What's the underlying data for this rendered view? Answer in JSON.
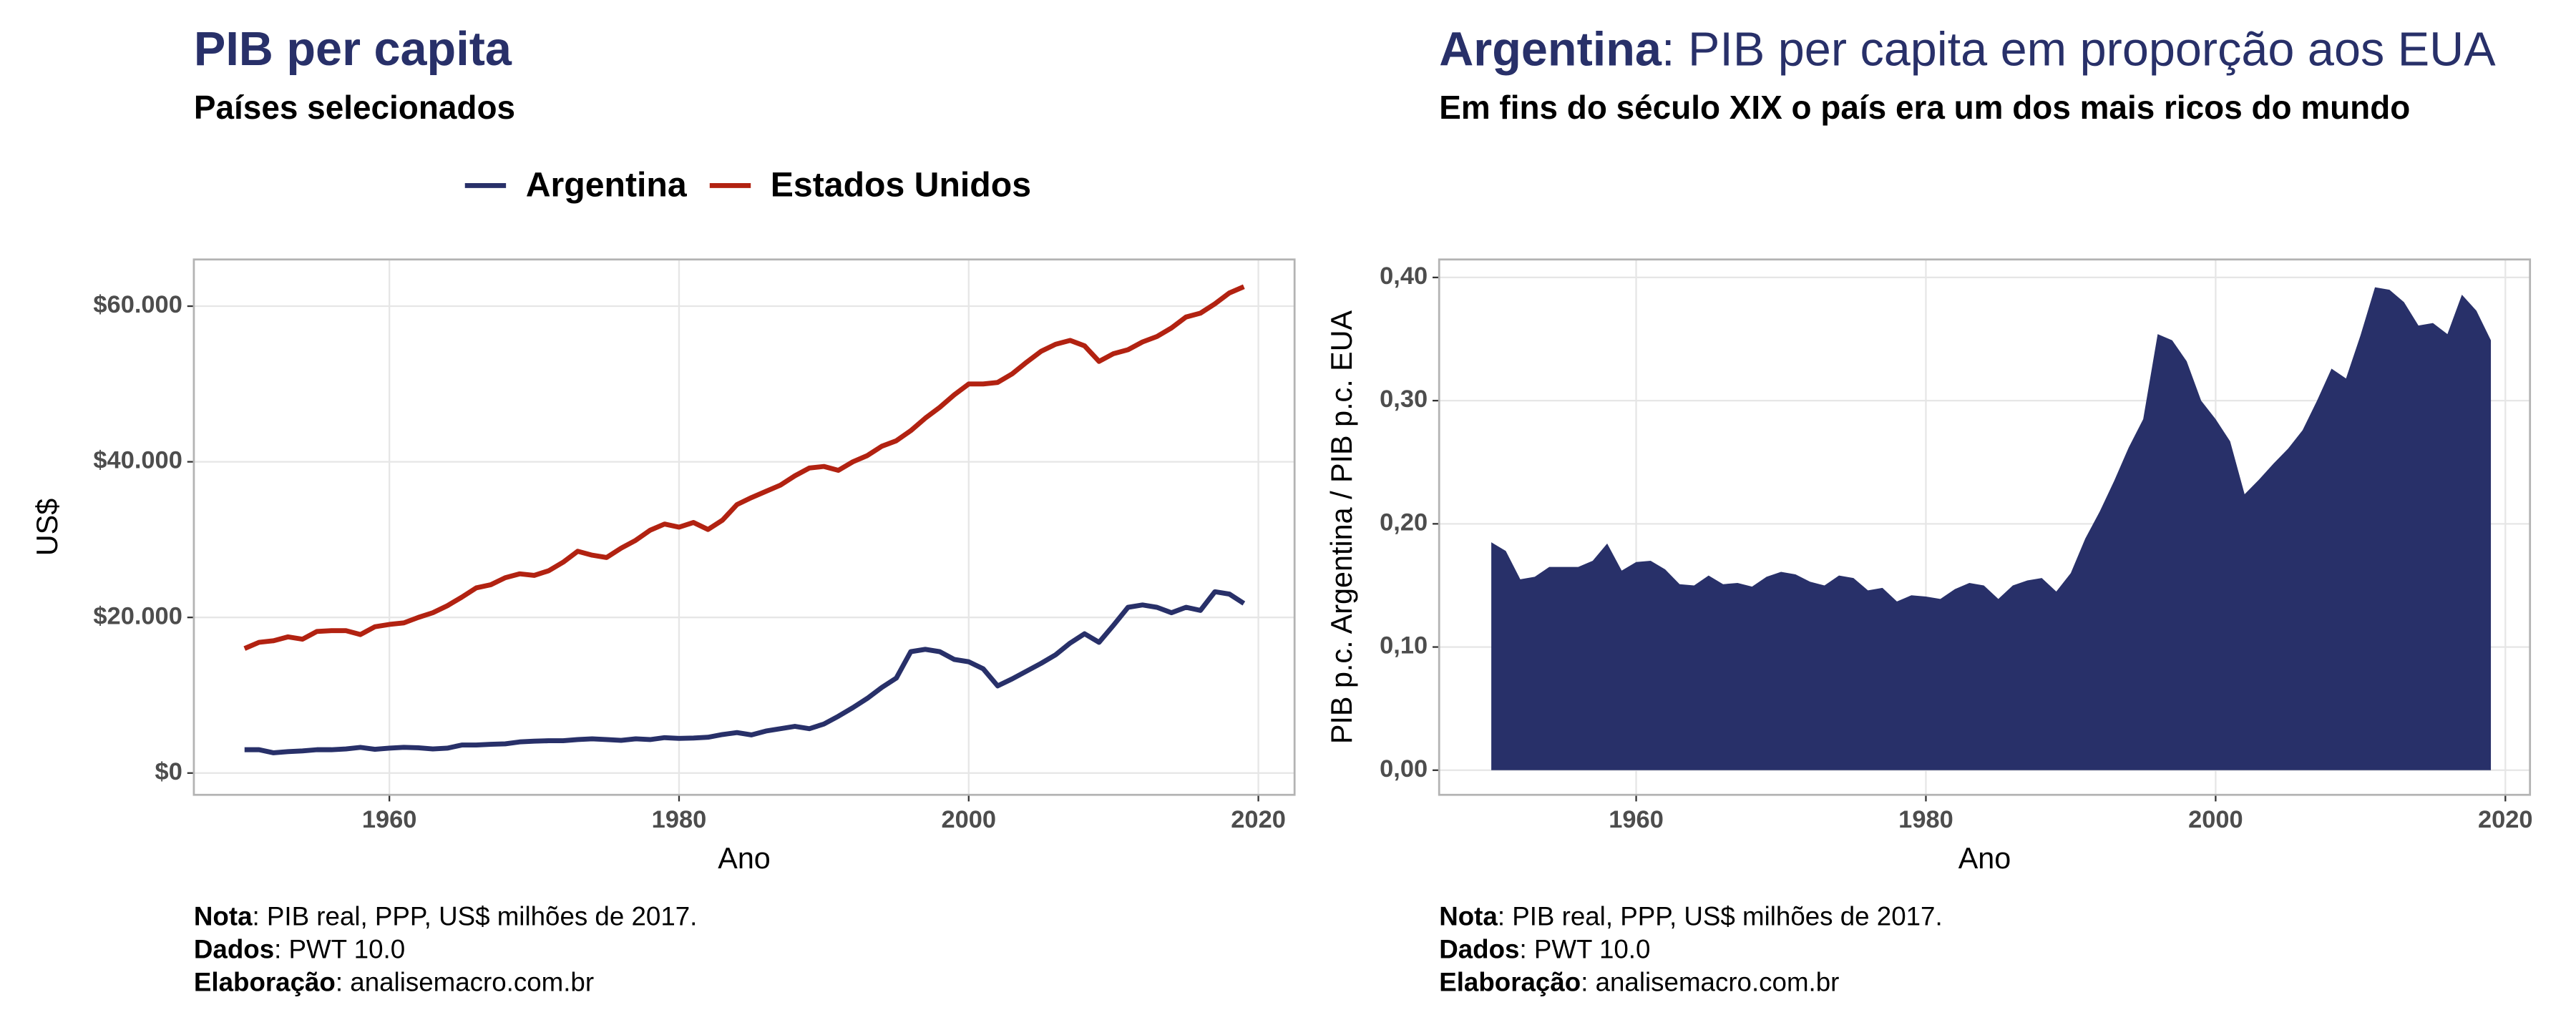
{
  "chart_data": [
    {
      "type": "line",
      "title": "PIB per capita",
      "subtitle": "Países selecionados",
      "xlabel": "Ano",
      "ylabel": "US$",
      "x": [
        1950,
        1951,
        1952,
        1953,
        1954,
        1955,
        1956,
        1957,
        1958,
        1959,
        1960,
        1961,
        1962,
        1963,
        1964,
        1965,
        1966,
        1967,
        1968,
        1969,
        1970,
        1971,
        1972,
        1973,
        1974,
        1975,
        1976,
        1977,
        1978,
        1979,
        1980,
        1981,
        1982,
        1983,
        1984,
        1985,
        1986,
        1987,
        1988,
        1989,
        1990,
        1991,
        1992,
        1993,
        1994,
        1995,
        1996,
        1997,
        1998,
        1999,
        2000,
        2001,
        2002,
        2003,
        2004,
        2005,
        2006,
        2007,
        2008,
        2009,
        2010,
        2011,
        2012,
        2013,
        2014,
        2015,
        2016,
        2017,
        2018,
        2019
      ],
      "series": [
        {
          "name": "Argentina",
          "color": "#283069",
          "values": [
            3000,
            3000,
            2600,
            2750,
            2850,
            3000,
            3000,
            3100,
            3300,
            3050,
            3200,
            3300,
            3250,
            3100,
            3200,
            3600,
            3600,
            3700,
            3750,
            4000,
            4100,
            4150,
            4150,
            4300,
            4400,
            4300,
            4200,
            4400,
            4300,
            4550,
            4450,
            4500,
            4600,
            4950,
            5200,
            4900,
            5400,
            5700,
            6000,
            5700,
            6300,
            7300,
            8400,
            9600,
            11000,
            12200,
            15600,
            15900,
            15600,
            14600,
            14300,
            13400,
            11200,
            12100,
            13100,
            14100,
            15200,
            16700,
            17900,
            16800,
            19000,
            21300,
            21600,
            21300,
            20600,
            21300,
            20900,
            23300,
            23000,
            21800
          ]
        },
        {
          "name": "Estados Unidos",
          "color": "#b22211",
          "values": [
            16000,
            16800,
            17000,
            17500,
            17200,
            18200,
            18300,
            18300,
            17800,
            18800,
            19100,
            19300,
            20000,
            20600,
            21500,
            22600,
            23800,
            24200,
            25100,
            25600,
            25400,
            26000,
            27100,
            28500,
            28000,
            27700,
            28900,
            29900,
            31200,
            32000,
            31600,
            32200,
            31300,
            32500,
            34500,
            35400,
            36200,
            37000,
            38200,
            39200,
            39400,
            38900,
            40000,
            40800,
            42000,
            42700,
            44000,
            45600,
            47000,
            48600,
            50000,
            50000,
            50200,
            51300,
            52800,
            54200,
            55100,
            55600,
            54900,
            52900,
            53900,
            54400,
            55400,
            56100,
            57200,
            58600,
            59100,
            60300,
            61700,
            62500
          ]
        }
      ],
      "xlim": [
        1946.5,
        2022.5
      ],
      "xticks": [
        1960,
        1980,
        2000,
        2020
      ],
      "ylim": [
        -2800,
        66000
      ],
      "yticks": [
        {
          "value": 0,
          "label": "$0"
        },
        {
          "value": 20000,
          "label": "$20.000"
        },
        {
          "value": 40000,
          "label": "$40.000"
        },
        {
          "value": 60000,
          "label": "$60.000"
        }
      ],
      "grid": true,
      "legend": "top",
      "notes": [
        {
          "label": "Nota",
          "text": ": PIB real, PPP, US$ milhões de 2017."
        },
        {
          "label": "Dados",
          "text": ": PWT 10.0"
        },
        {
          "label": "Elaboração",
          "text": ": analisemacro.com.br"
        }
      ]
    },
    {
      "type": "area",
      "title_bold": "Argentina",
      "title": ": PIB per capita em proporção aos EUA",
      "subtitle": "Em fins do século XIX o país era um dos mais ricos do mundo",
      "xlabel": "Ano",
      "ylabel": "PIB p.c. Argentina / PIB p.c. EUA",
      "x": [
        1950,
        1951,
        1952,
        1953,
        1954,
        1955,
        1956,
        1957,
        1958,
        1959,
        1960,
        1961,
        1962,
        1963,
        1964,
        1965,
        1966,
        1967,
        1968,
        1969,
        1970,
        1971,
        1972,
        1973,
        1974,
        1975,
        1976,
        1977,
        1978,
        1979,
        1980,
        1981,
        1982,
        1983,
        1984,
        1985,
        1986,
        1987,
        1988,
        1989,
        1990,
        1991,
        1992,
        1993,
        1994,
        1995,
        1996,
        1997,
        1998,
        1999,
        2000,
        2001,
        2002,
        2003,
        2004,
        2005,
        2006,
        2007,
        2008,
        2009,
        2010,
        2011,
        2012,
        2013,
        2014,
        2015,
        2016,
        2017,
        2018,
        2019
      ],
      "values": [
        0.185,
        0.178,
        0.155,
        0.157,
        0.165,
        0.165,
        0.165,
        0.17,
        0.184,
        0.162,
        0.169,
        0.17,
        0.163,
        0.151,
        0.15,
        0.158,
        0.151,
        0.152,
        0.149,
        0.157,
        0.161,
        0.159,
        0.153,
        0.15,
        0.158,
        0.156,
        0.146,
        0.148,
        0.137,
        0.142,
        0.141,
        0.139,
        0.147,
        0.152,
        0.15,
        0.139,
        0.15,
        0.154,
        0.156,
        0.145,
        0.16,
        0.188,
        0.21,
        0.235,
        0.262,
        0.285,
        0.354,
        0.349,
        0.332,
        0.3,
        0.285,
        0.267,
        0.224,
        0.236,
        0.249,
        0.261,
        0.276,
        0.3,
        0.326,
        0.318,
        0.353,
        0.392,
        0.39,
        0.38,
        0.361,
        0.363,
        0.354,
        0.386,
        0.373,
        0.349
      ],
      "color": "#283069",
      "xlim": [
        1946.4,
        2021.7
      ],
      "xticks": [
        1960,
        1980,
        2000,
        2020
      ],
      "ylim": [
        -0.02,
        0.4146
      ],
      "yticks": [
        {
          "value": 0,
          "label": "0,00"
        },
        {
          "value": 0.1,
          "label": "0,10"
        },
        {
          "value": 0.2,
          "label": "0,20"
        },
        {
          "value": 0.3,
          "label": "0,30"
        },
        {
          "value": 0.4,
          "label": "0,40"
        }
      ],
      "grid": true,
      "notes": [
        {
          "label": "Nota",
          "text": ": PIB real, PPP, US$ milhões de 2017."
        },
        {
          "label": "Dados",
          "text": ": PWT 10.0"
        },
        {
          "label": "Elaboração",
          "text": ": analisemacro.com.br"
        }
      ]
    }
  ]
}
